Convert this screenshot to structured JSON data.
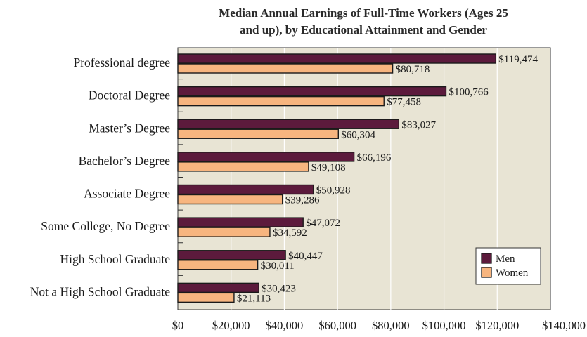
{
  "chart_data": {
    "type": "bar",
    "orientation": "horizontal",
    "title": "Median Annual Earnings of Full-Time Workers (Ages 25 and up), by Educational Attainment and Gender",
    "title_lines": [
      "Median Annual Earnings of Full-Time Workers (Ages 25",
      "and up), by Educational Attainment and Gender"
    ],
    "categories": [
      "Professional degree",
      "Doctoral Degree",
      "Master’s Degree",
      "Bachelor’s Degree",
      "Associate Degree",
      "Some College, No Degree",
      "High School Graduate",
      "Not a High School Graduate"
    ],
    "series": [
      {
        "name": "Men",
        "color": "#5c1a3c",
        "values": [
          119474,
          100766,
          83027,
          66196,
          50928,
          47072,
          40447,
          30423
        ],
        "labels": [
          "$119,474",
          "$100,766",
          "$83,027",
          "$66,196",
          "$50,928",
          "$47,072",
          "$40,447",
          "$30,423"
        ]
      },
      {
        "name": "Women",
        "color": "#f7b57f",
        "values": [
          80718,
          77458,
          60304,
          49108,
          39286,
          34592,
          30011,
          21113
        ],
        "labels": [
          "$80,718",
          "$77,458",
          "$60,304",
          "$49,108",
          "$39,286",
          "$34,592",
          "$30,011",
          "$21,113"
        ]
      }
    ],
    "xlim": [
      0,
      140000
    ],
    "xticks": [
      0,
      20000,
      40000,
      60000,
      80000,
      100000,
      120000,
      140000
    ],
    "xtick_labels": [
      "$0",
      "$20,000",
      "$40,000",
      "$60,000",
      "$80,000",
      "$100,000",
      "$120,000",
      "$140,000"
    ],
    "xlabel": "",
    "ylabel": "",
    "grid": true,
    "legend_position": "bottom-right",
    "plot_background": "#e8e4d4"
  }
}
